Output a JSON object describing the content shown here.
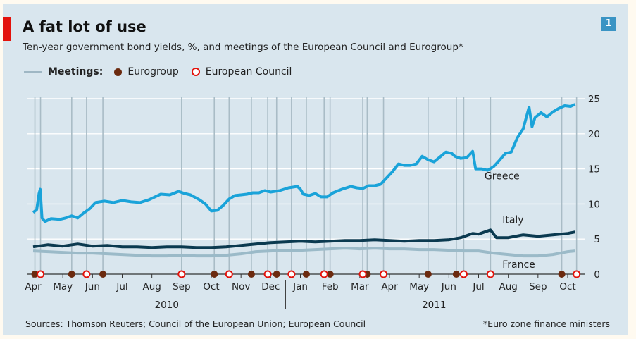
{
  "chart_data": {
    "type": "line",
    "title": "A fat lot of use",
    "subtitle": "Ten-year government bond yields, %, and meetings of the European Council and Eurogroup*",
    "badge": "1",
    "legend": {
      "meetings_label": "Meetings:",
      "eurogroup_label": "Eurogroup",
      "council_label": "European Council"
    },
    "x_months": [
      "Apr",
      "May",
      "Jun",
      "Jul",
      "Aug",
      "Sep",
      "Oct",
      "Nov",
      "Dec",
      "Jan",
      "Feb",
      "Mar",
      "Apr",
      "May",
      "Jun",
      "Jul",
      "Aug",
      "Sep",
      "Oct"
    ],
    "x_years": [
      "2010",
      "2011"
    ],
    "y_ticks": [
      0,
      5,
      10,
      15,
      20,
      25
    ],
    "ylim": [
      0,
      25
    ],
    "series": [
      {
        "name": "Greece",
        "color": "#1aa3d9",
        "points": [
          [
            0,
            8.8
          ],
          [
            0.12,
            9.2
          ],
          [
            0.2,
            11.5
          ],
          [
            0.24,
            12.1
          ],
          [
            0.3,
            8.0
          ],
          [
            0.4,
            7.5
          ],
          [
            0.6,
            7.9
          ],
          [
            0.9,
            7.8
          ],
          [
            1.1,
            8.0
          ],
          [
            1.3,
            8.3
          ],
          [
            1.5,
            8.0
          ],
          [
            1.7,
            8.7
          ],
          [
            1.9,
            9.3
          ],
          [
            2.1,
            10.2
          ],
          [
            2.4,
            10.4
          ],
          [
            2.7,
            10.2
          ],
          [
            3.0,
            10.5
          ],
          [
            3.3,
            10.3
          ],
          [
            3.6,
            10.2
          ],
          [
            3.9,
            10.6
          ],
          [
            4.1,
            11.0
          ],
          [
            4.3,
            11.4
          ],
          [
            4.6,
            11.3
          ],
          [
            4.9,
            11.8
          ],
          [
            5.1,
            11.5
          ],
          [
            5.3,
            11.3
          ],
          [
            5.6,
            10.6
          ],
          [
            5.8,
            10.0
          ],
          [
            6.0,
            9.0
          ],
          [
            6.2,
            9.1
          ],
          [
            6.4,
            9.8
          ],
          [
            6.6,
            10.7
          ],
          [
            6.8,
            11.2
          ],
          [
            7.0,
            11.3
          ],
          [
            7.2,
            11.4
          ],
          [
            7.4,
            11.6
          ],
          [
            7.6,
            11.6
          ],
          [
            7.8,
            11.9
          ],
          [
            8.0,
            11.7
          ],
          [
            8.3,
            11.9
          ],
          [
            8.6,
            12.3
          ],
          [
            8.9,
            12.5
          ],
          [
            9.0,
            12.1
          ],
          [
            9.1,
            11.4
          ],
          [
            9.3,
            11.2
          ],
          [
            9.5,
            11.5
          ],
          [
            9.7,
            11.0
          ],
          [
            9.9,
            11.0
          ],
          [
            10.1,
            11.6
          ],
          [
            10.4,
            12.1
          ],
          [
            10.7,
            12.5
          ],
          [
            10.9,
            12.3
          ],
          [
            11.1,
            12.2
          ],
          [
            11.3,
            12.6
          ],
          [
            11.5,
            12.6
          ],
          [
            11.7,
            12.8
          ],
          [
            11.9,
            13.7
          ],
          [
            12.1,
            14.6
          ],
          [
            12.3,
            15.7
          ],
          [
            12.5,
            15.5
          ],
          [
            12.7,
            15.5
          ],
          [
            12.9,
            15.7
          ],
          [
            13.1,
            16.8
          ],
          [
            13.3,
            16.3
          ],
          [
            13.5,
            16.0
          ],
          [
            13.7,
            16.7
          ],
          [
            13.9,
            17.4
          ],
          [
            14.1,
            17.2
          ],
          [
            14.2,
            16.8
          ],
          [
            14.4,
            16.5
          ],
          [
            14.6,
            16.6
          ],
          [
            14.8,
            17.5
          ],
          [
            14.9,
            15.0
          ],
          [
            15.1,
            15.0
          ],
          [
            15.3,
            14.8
          ],
          [
            15.5,
            15.3
          ],
          [
            15.7,
            16.2
          ],
          [
            15.9,
            17.2
          ],
          [
            16.1,
            17.4
          ],
          [
            16.3,
            19.4
          ],
          [
            16.5,
            20.7
          ],
          [
            16.7,
            23.8
          ],
          [
            16.8,
            21.0
          ],
          [
            16.9,
            22.3
          ],
          [
            17.1,
            23.0
          ],
          [
            17.3,
            22.4
          ],
          [
            17.5,
            23.1
          ],
          [
            17.7,
            23.6
          ],
          [
            17.9,
            24.0
          ],
          [
            18.1,
            23.9
          ],
          [
            18.25,
            24.2
          ]
        ],
        "label_at": [
          15.2,
          13.5
        ]
      },
      {
        "name": "Italy",
        "color": "#0b3a50",
        "points": [
          [
            0,
            3.9
          ],
          [
            0.5,
            4.2
          ],
          [
            1.0,
            4.0
          ],
          [
            1.5,
            4.3
          ],
          [
            2.0,
            4.0
          ],
          [
            2.5,
            4.1
          ],
          [
            3.0,
            3.9
          ],
          [
            3.5,
            3.9
          ],
          [
            4.0,
            3.8
          ],
          [
            4.5,
            3.9
          ],
          [
            5.0,
            3.9
          ],
          [
            5.5,
            3.8
          ],
          [
            6.0,
            3.8
          ],
          [
            6.5,
            3.9
          ],
          [
            7.0,
            4.1
          ],
          [
            7.5,
            4.3
          ],
          [
            8.0,
            4.5
          ],
          [
            8.5,
            4.6
          ],
          [
            9.0,
            4.7
          ],
          [
            9.5,
            4.6
          ],
          [
            10.0,
            4.7
          ],
          [
            10.5,
            4.8
          ],
          [
            11.0,
            4.8
          ],
          [
            11.5,
            4.9
          ],
          [
            12.0,
            4.8
          ],
          [
            12.5,
            4.7
          ],
          [
            13.0,
            4.8
          ],
          [
            13.5,
            4.8
          ],
          [
            14.0,
            4.9
          ],
          [
            14.4,
            5.2
          ],
          [
            14.8,
            5.8
          ],
          [
            15.0,
            5.7
          ],
          [
            15.4,
            6.3
          ],
          [
            15.6,
            5.2
          ],
          [
            16.0,
            5.2
          ],
          [
            16.5,
            5.6
          ],
          [
            17.0,
            5.4
          ],
          [
            17.5,
            5.6
          ],
          [
            18.0,
            5.8
          ],
          [
            18.25,
            6.0
          ]
        ],
        "label_at": [
          15.8,
          7.3
        ]
      },
      {
        "name": "France",
        "color": "#9bbac8",
        "points": [
          [
            0,
            3.3
          ],
          [
            0.5,
            3.2
          ],
          [
            1.0,
            3.1
          ],
          [
            1.5,
            3.0
          ],
          [
            2.0,
            3.0
          ],
          [
            2.5,
            2.9
          ],
          [
            3.0,
            2.8
          ],
          [
            3.5,
            2.7
          ],
          [
            4.0,
            2.6
          ],
          [
            4.5,
            2.6
          ],
          [
            5.0,
            2.7
          ],
          [
            5.5,
            2.6
          ],
          [
            6.0,
            2.6
          ],
          [
            6.5,
            2.7
          ],
          [
            7.0,
            2.9
          ],
          [
            7.5,
            3.2
          ],
          [
            8.0,
            3.3
          ],
          [
            8.5,
            3.4
          ],
          [
            9.0,
            3.4
          ],
          [
            9.5,
            3.5
          ],
          [
            10.0,
            3.6
          ],
          [
            10.5,
            3.7
          ],
          [
            11.0,
            3.6
          ],
          [
            11.5,
            3.7
          ],
          [
            12.0,
            3.6
          ],
          [
            12.5,
            3.6
          ],
          [
            13.0,
            3.5
          ],
          [
            13.5,
            3.5
          ],
          [
            14.0,
            3.4
          ],
          [
            14.5,
            3.3
          ],
          [
            15.0,
            3.3
          ],
          [
            15.5,
            3.0
          ],
          [
            16.0,
            2.8
          ],
          [
            16.5,
            2.6
          ],
          [
            17.0,
            2.6
          ],
          [
            17.5,
            2.8
          ],
          [
            18.0,
            3.2
          ],
          [
            18.25,
            3.3
          ]
        ],
        "label_at": [
          15.8,
          0.9
        ]
      }
    ],
    "meetings": {
      "eurogroup": [
        0.06,
        1.3,
        2.35,
        6.1,
        7.35,
        8.2,
        9.2,
        10.0,
        11.25,
        13.3,
        14.25,
        17.8
      ],
      "council": [
        0.25,
        1.8,
        5.0,
        6.6,
        7.9,
        8.7,
        9.8,
        11.1,
        11.8,
        14.5,
        15.4,
        18.3
      ]
    },
    "sources": "Sources: Thomson Reuters; Council of the European Union; European Council",
    "footnote": "*Euro zone finance ministers"
  }
}
